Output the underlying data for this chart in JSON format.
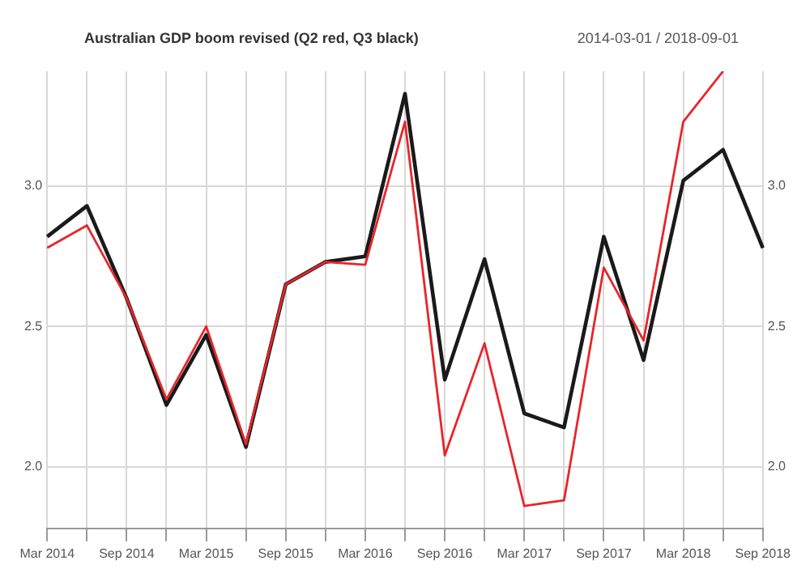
{
  "chart_data": {
    "type": "line",
    "title": "Australian GDP boom revised (Q2 red, Q3 black)",
    "subtitle": "2014-03-01 / 2018-09-01",
    "categories": [
      "Mar 2014",
      null,
      "Sep 2014",
      null,
      "Mar 2015",
      null,
      "Sep 2015",
      null,
      "Mar 2016",
      null,
      "Sep 2016",
      null,
      "Mar 2017",
      null,
      "Sep 2017",
      null,
      "Mar 2018",
      null,
      "Sep 2018"
    ],
    "series": [
      {
        "color": "#e8252a",
        "values": [
          2.78,
          2.86,
          2.6,
          2.24,
          2.5,
          2.08,
          2.65,
          2.73,
          2.72,
          3.23,
          2.04,
          2.44,
          1.86,
          1.88,
          2.71,
          2.45,
          3.23,
          3.41,
          null
        ]
      },
      {
        "color": "#1a1a1a",
        "values": [
          2.82,
          2.93,
          2.6,
          2.22,
          2.47,
          2.07,
          2.65,
          2.73,
          2.75,
          3.33,
          2.31,
          2.74,
          2.19,
          2.14,
          2.82,
          2.38,
          3.02,
          3.13,
          2.78
        ]
      }
    ],
    "ylim": [
      1.78,
      3.41
    ],
    "yticks": [
      {
        "value": 2,
        "label": "2.0"
      },
      {
        "value": 2.5,
        "label": "2.5"
      },
      {
        "value": 3,
        "label": "3.0"
      }
    ],
    "y2lim": [
      1.78,
      3.41
    ],
    "y2ticks": [
      {
        "value": 2,
        "label": "2.0"
      },
      {
        "value": 2.5,
        "label": "2.5"
      },
      {
        "value": 3,
        "label": "3.0"
      }
    ],
    "grid": true,
    "legend": false,
    "marker": "none",
    "line_style": "solid"
  }
}
